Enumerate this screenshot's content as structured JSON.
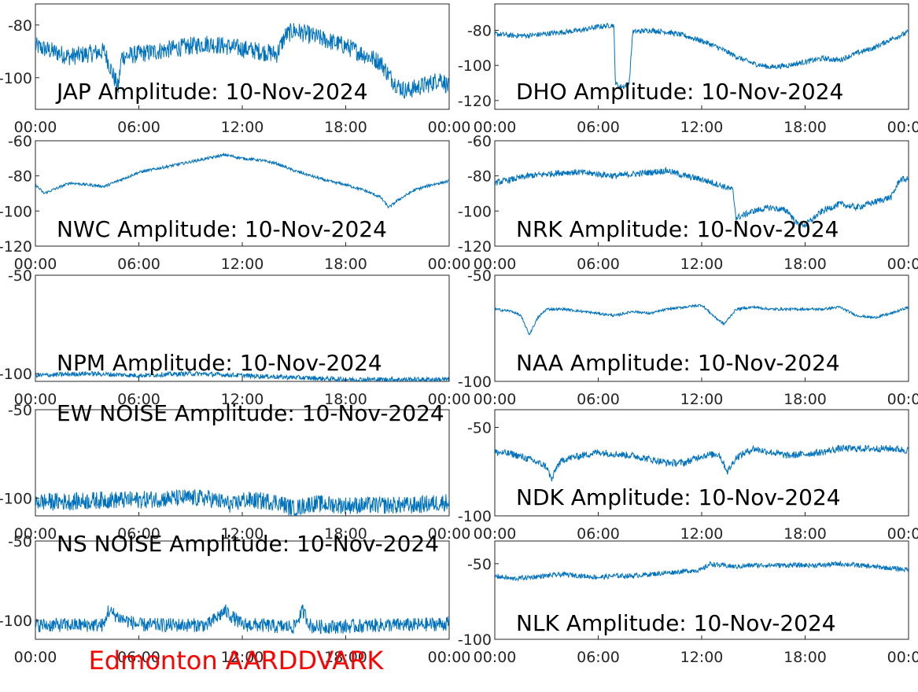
{
  "footer": {
    "text": "Edmonton AARDDVARK",
    "color": "#ff0000"
  },
  "series_color": "#0072bd",
  "chart_data": [
    {
      "type": "line",
      "title": "JAP Amplitude: 10-Nov-2024",
      "x_ticks": [
        "00:00",
        "06:00",
        "12:00",
        "18:00",
        "00:00"
      ],
      "y_ticks": [
        -80,
        -100
      ],
      "ylim": [
        -112,
        -72
      ],
      "y_dir": "reverse",
      "x_hours": [
        0,
        1,
        2,
        3,
        4,
        4.8,
        5,
        6,
        7,
        8,
        9,
        10,
        11,
        12,
        13,
        14,
        14.5,
        15,
        16,
        17,
        18,
        19,
        20,
        20.5,
        21,
        21.5,
        22,
        22.5,
        23,
        23.5,
        24
      ],
      "values": [
        -88,
        -90,
        -92,
        -91,
        -90,
        -104,
        -92,
        -91,
        -90,
        -89,
        -88,
        -87,
        -88,
        -89,
        -90,
        -91,
        -84,
        -82,
        -84,
        -86,
        -88,
        -91,
        -94,
        -99,
        -103,
        -105,
        -104,
        -103,
        -102,
        -100,
        -104
      ],
      "noise": 3.5
    },
    {
      "type": "line",
      "title": "DHO Amplitude: 10-Nov-2024",
      "x_ticks": [
        "00:00",
        "06:00",
        "12:00",
        "18:00",
        "00:00"
      ],
      "y_ticks": [
        -80,
        -100,
        -120
      ],
      "ylim": [
        -125,
        -65
      ],
      "y_dir": "reverse",
      "x_hours": [
        0,
        1,
        2,
        3,
        4,
        5,
        6,
        6.9,
        7,
        7.2,
        7.5,
        7.8,
        8,
        9,
        10,
        11,
        12,
        13,
        14,
        15,
        16,
        17,
        18,
        19,
        20,
        21,
        22,
        23,
        24
      ],
      "values": [
        -82,
        -83,
        -83,
        -82,
        -81,
        -80,
        -78,
        -77,
        -110,
        -112,
        -112,
        -110,
        -81,
        -80,
        -81,
        -83,
        -86,
        -90,
        -95,
        -99,
        -101,
        -100,
        -98,
        -96,
        -97,
        -93,
        -90,
        -85,
        -81
      ],
      "noise": 1.5
    },
    {
      "type": "line",
      "title": "NWC Amplitude: 10-Nov-2024",
      "x_ticks": [
        "00:00",
        "06:00",
        "12:00",
        "18:00",
        "00:00"
      ],
      "y_ticks": [
        -60,
        -80,
        -100,
        -120
      ],
      "ylim": [
        -120,
        -60
      ],
      "y_dir": "reverse",
      "x_hours": [
        0,
        0.5,
        1,
        2,
        3,
        4,
        5,
        6,
        7,
        8,
        9,
        10,
        11,
        12,
        13,
        14,
        15,
        16,
        17,
        18,
        19,
        20,
        20.5,
        21,
        22,
        23,
        24
      ],
      "values": [
        -85,
        -90,
        -88,
        -84,
        -85,
        -86,
        -82,
        -78,
        -76,
        -74,
        -72,
        -70,
        -68,
        -70,
        -71,
        -73,
        -77,
        -80,
        -83,
        -85,
        -88,
        -92,
        -98,
        -94,
        -88,
        -85,
        -83
      ],
      "noise": 0.8
    },
    {
      "type": "line",
      "title": "NRK Amplitude: 10-Nov-2024",
      "x_ticks": [
        "00:00",
        "06:00",
        "12:00",
        "18:00",
        "00:00"
      ],
      "y_ticks": [
        -60,
        -80,
        -100,
        -120
      ],
      "ylim": [
        -120,
        -60
      ],
      "y_dir": "reverse",
      "x_hours": [
        0,
        1,
        2,
        3,
        4,
        5,
        6,
        7,
        8,
        9,
        10,
        11,
        12,
        13,
        13.8,
        14,
        15,
        16,
        17,
        17.5,
        18,
        19,
        20,
        21,
        22,
        23,
        23.5,
        24
      ],
      "values": [
        -84,
        -82,
        -80,
        -79,
        -78,
        -78,
        -79,
        -80,
        -79,
        -78,
        -77,
        -80,
        -82,
        -85,
        -88,
        -104,
        -100,
        -98,
        -100,
        -107,
        -108,
        -100,
        -96,
        -98,
        -95,
        -92,
        -82,
        -82
      ],
      "noise": 1.8
    },
    {
      "type": "line",
      "title": "NPM Amplitude: 10-Nov-2024",
      "x_ticks": [
        "00:00",
        "06:00",
        "12:00",
        "18:00",
        "00:00"
      ],
      "y_ticks": [
        -50,
        -100
      ],
      "ylim": [
        -104,
        -50
      ],
      "y_dir": "reverse",
      "x_hours": [
        0,
        3,
        6,
        9,
        12,
        15,
        18,
        21,
        24
      ],
      "values": [
        -101,
        -100,
        -101,
        -100,
        -101,
        -102,
        -103,
        -103,
        -103
      ],
      "noise": 1.2
    },
    {
      "type": "line",
      "title": "NAA Amplitude: 10-Nov-2024",
      "x_ticks": [
        "00:00",
        "06:00",
        "12:00",
        "18:00",
        "00:00"
      ],
      "y_ticks": [
        -50,
        -100
      ],
      "ylim": [
        -100,
        -50
      ],
      "y_dir": "reverse",
      "x_hours": [
        0,
        1,
        1.5,
        2,
        2.5,
        3,
        4,
        5,
        6,
        7,
        8,
        9,
        10,
        11,
        12,
        12.8,
        13.3,
        14,
        15,
        16,
        17,
        18,
        19,
        20,
        21,
        22,
        23,
        24
      ],
      "values": [
        -66,
        -67,
        -69,
        -78,
        -70,
        -66,
        -66,
        -67,
        -68,
        -69,
        -67,
        -68,
        -66,
        -65,
        -64,
        -70,
        -73,
        -66,
        -65,
        -66,
        -66,
        -66,
        -66,
        -65,
        -69,
        -70,
        -68,
        -65
      ],
      "noise": 0.6
    },
    {
      "type": "line",
      "title": "EW NOISE Amplitude: 10-Nov-2024",
      "x_ticks": [
        "00:00",
        "06:00",
        "12:00",
        "18:00",
        "00:00"
      ],
      "y_ticks": [
        -50,
        -100
      ],
      "ylim": [
        -110,
        -50
      ],
      "y_dir": "reverse",
      "x_hours": [
        0,
        2,
        4,
        6,
        8,
        10,
        11.5,
        12,
        14,
        15,
        16,
        18,
        20,
        22,
        24
      ],
      "values": [
        -102,
        -102,
        -101,
        -101,
        -100,
        -100,
        -104,
        -101,
        -102,
        -106,
        -103,
        -104,
        -104,
        -104,
        -102
      ],
      "noise": 5
    },
    {
      "type": "line",
      "title": "NDK Amplitude: 10-Nov-2024",
      "x_ticks": [
        "00:00",
        "06:00",
        "12:00",
        "18:00",
        "00:00"
      ],
      "y_ticks": [
        -50,
        -100
      ],
      "ylim": [
        -100,
        -40
      ],
      "y_dir": "reverse",
      "x_hours": [
        0,
        1,
        2,
        3,
        3.3,
        3.6,
        4,
        5,
        6,
        7,
        8,
        9,
        10,
        11,
        12,
        13,
        13.5,
        14,
        15,
        16,
        17,
        18,
        19,
        20,
        21,
        22,
        23,
        24
      ],
      "values": [
        -64,
        -65,
        -68,
        -72,
        -80,
        -72,
        -68,
        -66,
        -64,
        -65,
        -66,
        -68,
        -70,
        -70,
        -66,
        -65,
        -75,
        -67,
        -62,
        -64,
        -66,
        -65,
        -64,
        -62,
        -62,
        -62,
        -62,
        -63
      ],
      "noise": 2
    },
    {
      "type": "line",
      "title": "NS NOISE Amplitude: 10-Nov-2024",
      "x_ticks": [
        "00:00",
        "06:00",
        "12:00",
        "18:00",
        "00:00"
      ],
      "y_ticks": [
        -50,
        -100
      ],
      "ylim": [
        -112,
        -50
      ],
      "y_dir": "reverse",
      "x_hours": [
        0,
        2,
        4,
        4.2,
        5,
        6,
        8,
        10,
        11,
        12,
        13,
        14,
        15,
        15.5,
        16,
        18,
        20,
        22,
        24
      ],
      "values": [
        -103,
        -103,
        -103,
        -94,
        -99,
        -103,
        -103,
        -103,
        -94,
        -103,
        -103,
        -104,
        -104,
        -94,
        -104,
        -104,
        -103,
        -103,
        -102
      ],
      "noise": 4.5
    },
    {
      "type": "line",
      "title": "NLK Amplitude: 10-Nov-2024",
      "x_ticks": [
        "00:00",
        "06:00",
        "12:00",
        "18:00",
        "00:00"
      ],
      "y_ticks": [
        -50,
        -100
      ],
      "ylim": [
        -100,
        -35
      ],
      "y_dir": "reverse",
      "x_hours": [
        0,
        1,
        2,
        3,
        4,
        5,
        6,
        7,
        8,
        9,
        10,
        11,
        12,
        12.5,
        13,
        14,
        15,
        16,
        17,
        18,
        19,
        20,
        21,
        22,
        23,
        24
      ],
      "values": [
        -58,
        -60,
        -59,
        -58,
        -57,
        -58,
        -59,
        -58,
        -58,
        -57,
        -56,
        -55,
        -54,
        -50,
        -51,
        -52,
        -51,
        -51,
        -51,
        -51,
        -51,
        -50,
        -51,
        -52,
        -53,
        -54
      ],
      "noise": 1.6
    }
  ]
}
